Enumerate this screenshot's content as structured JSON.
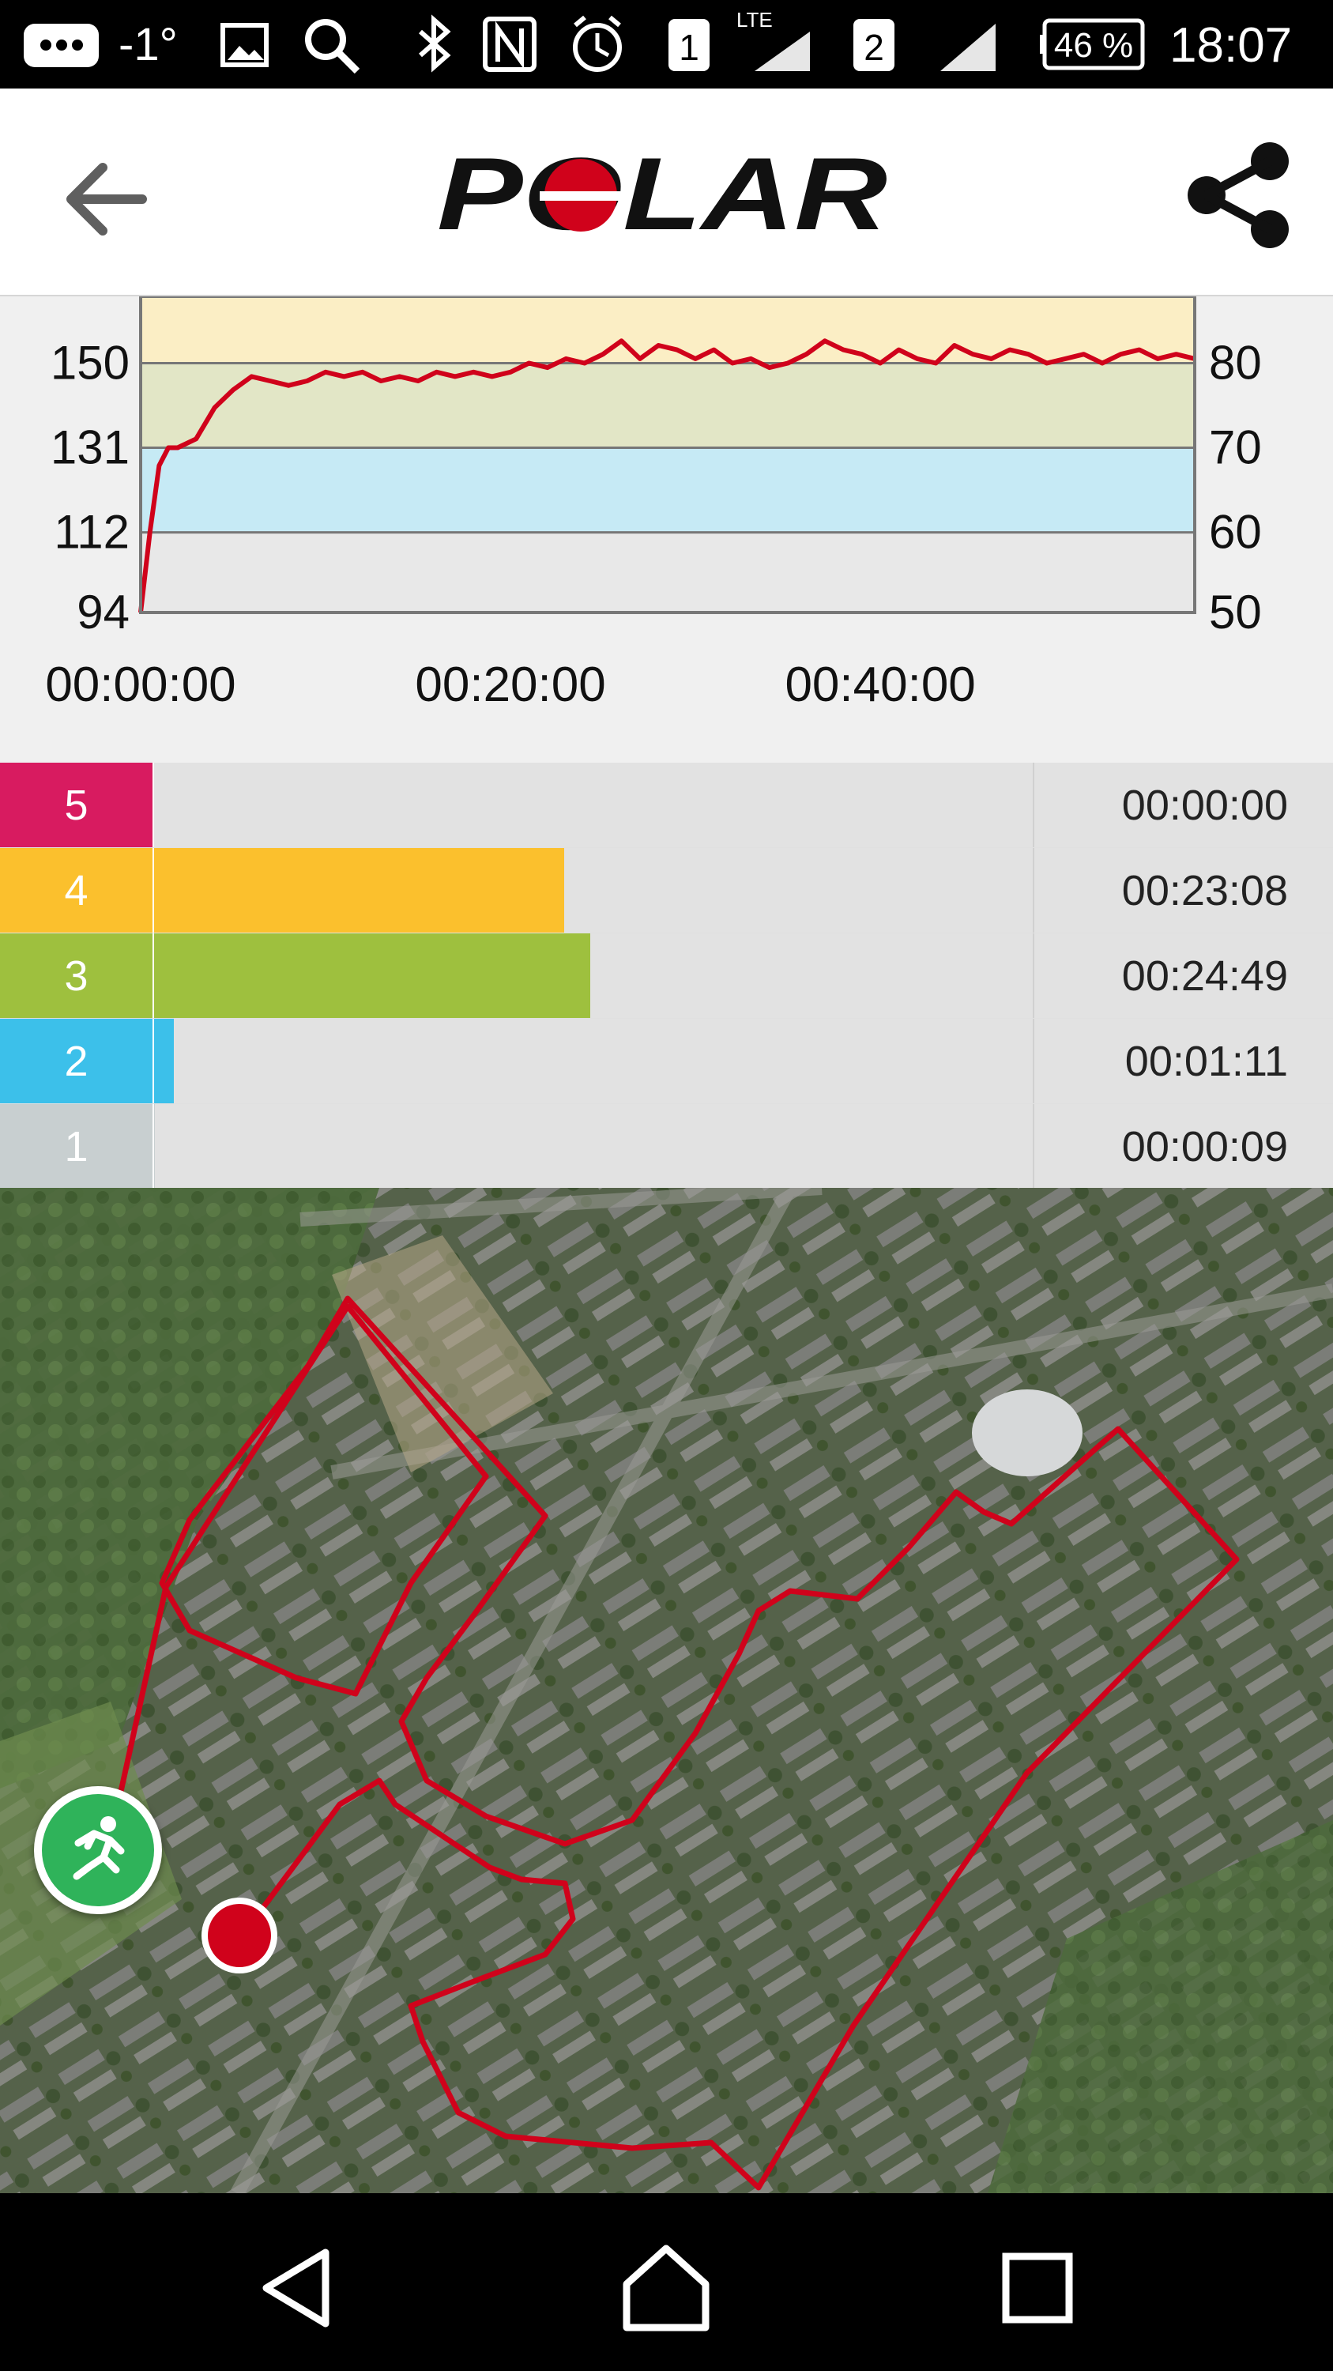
{
  "status_bar": {
    "temperature": "-1°",
    "sim1_label": "1",
    "lte_label": "LTE",
    "sim2_label": "2",
    "battery": "46 %",
    "time": "18:07",
    "icons": [
      "chat-icon",
      "image-icon",
      "search-icon",
      "bluetooth-icon",
      "nfc-icon",
      "alarm-icon",
      "signal-icon"
    ]
  },
  "app_bar": {
    "brand": "POLAR",
    "icons": [
      "back-arrow-icon",
      "share-icon"
    ]
  },
  "chart_data": {
    "type": "line",
    "title": "",
    "xlabel": "",
    "ylabel": "",
    "x_tick_labels": [
      "00:00:00",
      "00:20:00",
      "00:40:00"
    ],
    "y_left_ticks": [
      "150",
      "131",
      "112",
      "94"
    ],
    "y_right_ticks": [
      "80",
      "70",
      "60",
      "50"
    ],
    "ylim": [
      94,
      165
    ],
    "xlim_min": [
      0,
      57
    ],
    "zone_bands": [
      {
        "from": 94,
        "to": 112,
        "color": "#e8e8e8"
      },
      {
        "from": 112,
        "to": 131,
        "color": "#c6eaf5"
      },
      {
        "from": 131,
        "to": 150,
        "color": "#e2e6c6"
      },
      {
        "from": 150,
        "to": 165,
        "color": "#fbeec5"
      }
    ],
    "series": [
      {
        "color": "#d0021b",
        "x_min": [
          0,
          0.5,
          1,
          1.5,
          2,
          3,
          4,
          5,
          6,
          7,
          8,
          9,
          10,
          11,
          12,
          13,
          14,
          15,
          16,
          17,
          18,
          19,
          20,
          21,
          22,
          23,
          24,
          25,
          26,
          27,
          28,
          29,
          30,
          31,
          32,
          33,
          34,
          35,
          36,
          37,
          38,
          39,
          40,
          41,
          42,
          43,
          44,
          45,
          46,
          47,
          48,
          49,
          50,
          51,
          52,
          53,
          54,
          55,
          56,
          57
        ],
        "values": [
          94,
          112,
          127,
          131,
          131,
          133,
          140,
          144,
          147,
          146,
          145,
          146,
          148,
          147,
          148,
          146,
          147,
          146,
          148,
          147,
          148,
          147,
          148,
          150,
          149,
          151,
          150,
          152,
          155,
          151,
          154,
          153,
          151,
          153,
          150,
          151,
          149,
          150,
          152,
          155,
          153,
          152,
          150,
          153,
          151,
          150,
          154,
          152,
          151,
          153,
          152,
          150,
          151,
          152,
          150,
          152,
          153,
          151,
          152,
          151
        ]
      }
    ]
  },
  "zones": [
    {
      "zone": "5",
      "color": "#d81b60",
      "fraction": 0.0,
      "time": "00:00:00"
    },
    {
      "zone": "4",
      "color": "#fbc02d",
      "fraction": 0.468,
      "time": "00:23:08"
    },
    {
      "zone": "3",
      "color": "#9ec03e",
      "fraction": 0.497,
      "time": "00:24:49"
    },
    {
      "zone": "2",
      "color": "#3cc0ea",
      "fraction": 0.024,
      "time": "00:01:11"
    },
    {
      "zone": "1",
      "color": "#c8cfd0",
      "fraction": 0.003,
      "time": "00:00:09"
    }
  ],
  "map": {
    "route_color": "#d0021b",
    "icons": [
      "running-activity-icon",
      "route-end-marker"
    ]
  },
  "nav_bar": {
    "icons": [
      "nav-back-icon",
      "nav-home-icon",
      "nav-recents-icon"
    ]
  }
}
